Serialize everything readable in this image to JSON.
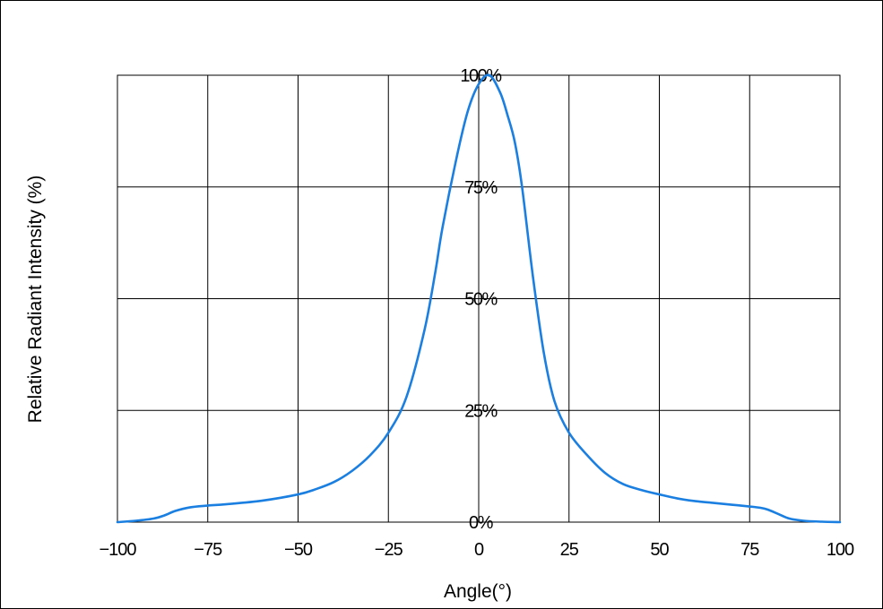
{
  "chart_data": {
    "type": "line",
    "title": "",
    "xlabel": "Angle(°)",
    "ylabel": "Relative Radiant Intensity (%)",
    "xlim": [
      -100,
      100
    ],
    "ylim": [
      0,
      100
    ],
    "grid": true,
    "x_ticks": [
      -100,
      -75,
      -50,
      -25,
      0,
      25,
      50,
      75,
      100
    ],
    "x_tick_labels": [
      "−100",
      "−75",
      "−50",
      "−25",
      "0",
      "25",
      "50",
      "75",
      "100"
    ],
    "y_ticks": [
      0,
      25,
      50,
      75,
      100
    ],
    "y_tick_labels": [
      "0%",
      "25%",
      "50%",
      "75%",
      "100%"
    ],
    "line_color": "#1a7fe0",
    "series": [
      {
        "x": [
          -100,
          -95,
          -90,
          -87,
          -84,
          -80,
          -75,
          -70,
          -60,
          -50,
          -45,
          -40,
          -35,
          -30,
          -25,
          -20,
          -15,
          -12,
          -10,
          -6,
          -3,
          0,
          3,
          6,
          8,
          10,
          12,
          15,
          18,
          21,
          25,
          30,
          35,
          40,
          45,
          50,
          55,
          60,
          65,
          70,
          75,
          78,
          80,
          83,
          86,
          90,
          95,
          100
        ],
        "y": [
          0,
          0.3,
          0.8,
          1.5,
          2.5,
          3.3,
          3.7,
          4.0,
          4.8,
          6.2,
          7.4,
          9.0,
          11.5,
          15.0,
          20.0,
          28.0,
          43.0,
          56.0,
          66.0,
          82.0,
          92.0,
          98.0,
          100,
          96.0,
          91.0,
          85.0,
          75.0,
          55.0,
          38.0,
          27.0,
          20.0,
          15.0,
          11.0,
          8.5,
          7.2,
          6.2,
          5.3,
          4.7,
          4.3,
          3.9,
          3.5,
          3.2,
          2.8,
          1.8,
          0.8,
          0.3,
          0.1,
          0
        ]
      }
    ]
  }
}
